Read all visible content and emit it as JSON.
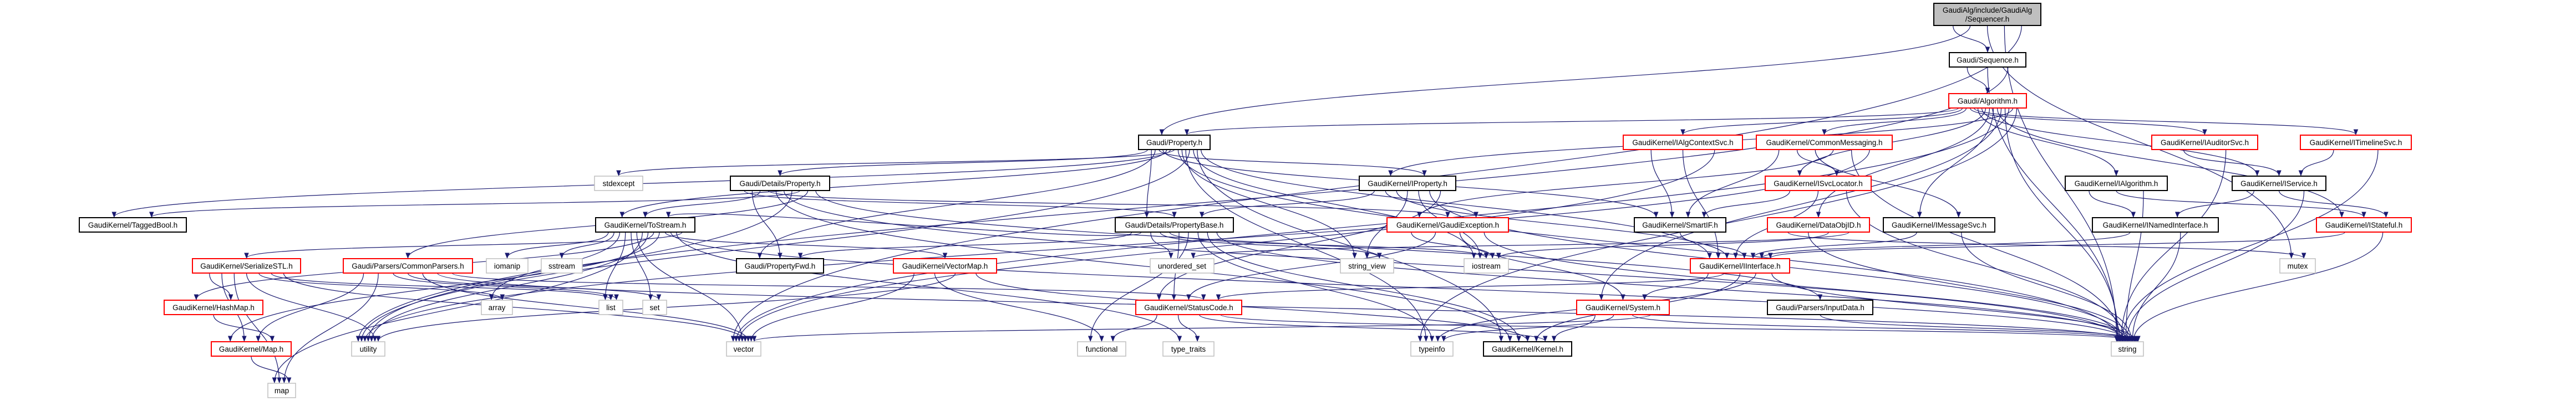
{
  "colors": {
    "edge": "#191970",
    "root_fill": "#bfbfbf",
    "documented_border": "#000000",
    "truncated_border": "#ff0000",
    "external_border": "#bfbfbf"
  },
  "nodes": [
    {
      "id": "root",
      "label": [
        "GaudiAlg/include/GaudiAlg",
        "/Sequencer.h"
      ],
      "kind": "root"
    },
    {
      "id": "sequence",
      "label": [
        "Gaudi/Sequence.h"
      ],
      "kind": "doc"
    },
    {
      "id": "algorithm",
      "label": [
        "Gaudi/Algorithm.h"
      ],
      "kind": "trunc"
    },
    {
      "id": "property",
      "label": [
        "Gaudi/Property.h"
      ],
      "kind": "doc"
    },
    {
      "id": "ialgctx",
      "label": [
        "GaudiKernel/IAlgContextSvc.h"
      ],
      "kind": "trunc"
    },
    {
      "id": "commonmsg",
      "label": [
        "GaudiKernel/CommonMessaging.h"
      ],
      "kind": "trunc"
    },
    {
      "id": "iauditor",
      "label": [
        "GaudiKernel/IAuditorSvc.h"
      ],
      "kind": "trunc"
    },
    {
      "id": "itimeline",
      "label": [
        "GaudiKernel/ITimelineSvc.h"
      ],
      "kind": "trunc"
    },
    {
      "id": "stdexcept",
      "label": [
        "stdexcept"
      ],
      "kind": "ext"
    },
    {
      "id": "detprop",
      "label": [
        "Gaudi/Details/Property.h"
      ],
      "kind": "doc"
    },
    {
      "id": "iproperty",
      "label": [
        "GaudiKernel/IProperty.h"
      ],
      "kind": "doc"
    },
    {
      "id": "isvcloc",
      "label": [
        "GaudiKernel/ISvcLocator.h"
      ],
      "kind": "trunc"
    },
    {
      "id": "ialgorithm",
      "label": [
        "GaudiKernel/IAlgorithm.h"
      ],
      "kind": "doc"
    },
    {
      "id": "iservice",
      "label": [
        "GaudiKernel/IService.h"
      ],
      "kind": "doc"
    },
    {
      "id": "taggedbool",
      "label": [
        "GaudiKernel/TaggedBool.h"
      ],
      "kind": "doc"
    },
    {
      "id": "tostream",
      "label": [
        "GaudiKernel/ToStream.h"
      ],
      "kind": "doc"
    },
    {
      "id": "propbase",
      "label": [
        "Gaudi/Details/PropertyBase.h"
      ],
      "kind": "doc"
    },
    {
      "id": "gaudiexc",
      "label": [
        "GaudiKernel/GaudiException.h"
      ],
      "kind": "trunc"
    },
    {
      "id": "smartif",
      "label": [
        "GaudiKernel/SmartIF.h"
      ],
      "kind": "doc"
    },
    {
      "id": "dataobjid",
      "label": [
        "GaudiKernel/DataObjID.h"
      ],
      "kind": "trunc"
    },
    {
      "id": "imsgsvc",
      "label": [
        "GaudiKernel/IMessageSvc.h"
      ],
      "kind": "doc"
    },
    {
      "id": "inamed",
      "label": [
        "GaudiKernel/INamedInterface.h"
      ],
      "kind": "doc"
    },
    {
      "id": "istateful",
      "label": [
        "GaudiKernel/IStateful.h"
      ],
      "kind": "trunc"
    },
    {
      "id": "serializestl",
      "label": [
        "GaudiKernel/SerializeSTL.h"
      ],
      "kind": "trunc"
    },
    {
      "id": "commonparsers",
      "label": [
        "Gaudi/Parsers/CommonParsers.h"
      ],
      "kind": "trunc"
    },
    {
      "id": "iomanip",
      "label": [
        "iomanip"
      ],
      "kind": "ext"
    },
    {
      "id": "sstream",
      "label": [
        "sstream"
      ],
      "kind": "ext"
    },
    {
      "id": "propfwd",
      "label": [
        "Gaudi/PropertyFwd.h"
      ],
      "kind": "doc"
    },
    {
      "id": "vectormap",
      "label": [
        "GaudiKernel/VectorMap.h"
      ],
      "kind": "trunc"
    },
    {
      "id": "unordered_set",
      "label": [
        "unordered_set"
      ],
      "kind": "ext"
    },
    {
      "id": "string_view",
      "label": [
        "string_view"
      ],
      "kind": "ext"
    },
    {
      "id": "iostream",
      "label": [
        "iostream"
      ],
      "kind": "ext"
    },
    {
      "id": "iinterface",
      "label": [
        "GaudiKernel/IInterface.h"
      ],
      "kind": "trunc"
    },
    {
      "id": "mutex",
      "label": [
        "mutex"
      ],
      "kind": "ext"
    },
    {
      "id": "hashmap",
      "label": [
        "GaudiKernel/HashMap.h"
      ],
      "kind": "trunc"
    },
    {
      "id": "array",
      "label": [
        "array"
      ],
      "kind": "ext"
    },
    {
      "id": "list",
      "label": [
        "list"
      ],
      "kind": "ext"
    },
    {
      "id": "set",
      "label": [
        "set"
      ],
      "kind": "ext"
    },
    {
      "id": "statuscode",
      "label": [
        "GaudiKernel/StatusCode.h"
      ],
      "kind": "trunc"
    },
    {
      "id": "system",
      "label": [
        "GaudiKernel/System.h"
      ],
      "kind": "trunc"
    },
    {
      "id": "inputdata",
      "label": [
        "Gaudi/Parsers/InputData.h"
      ],
      "kind": "doc"
    },
    {
      "id": "mapH",
      "label": [
        "GaudiKernel/Map.h"
      ],
      "kind": "trunc"
    },
    {
      "id": "utility",
      "label": [
        "utility"
      ],
      "kind": "ext"
    },
    {
      "id": "vector",
      "label": [
        "vector"
      ],
      "kind": "ext"
    },
    {
      "id": "functional",
      "label": [
        "functional"
      ],
      "kind": "ext"
    },
    {
      "id": "type_traits",
      "label": [
        "type_traits"
      ],
      "kind": "ext"
    },
    {
      "id": "typeinfo",
      "label": [
        "typeinfo"
      ],
      "kind": "ext"
    },
    {
      "id": "kernel",
      "label": [
        "GaudiKernel/Kernel.h"
      ],
      "kind": "doc"
    },
    {
      "id": "string",
      "label": [
        "string"
      ],
      "kind": "ext"
    },
    {
      "id": "map",
      "label": [
        "map"
      ],
      "kind": "ext"
    }
  ],
  "edges": [
    [
      "root",
      "sequence"
    ],
    [
      "root",
      "property"
    ],
    [
      "root",
      "mutex"
    ],
    [
      "root",
      "string"
    ],
    [
      "root",
      "vector"
    ],
    [
      "sequence",
      "algorithm"
    ],
    [
      "sequence",
      "string"
    ],
    [
      "sequence",
      "utility"
    ],
    [
      "algorithm",
      "property"
    ],
    [
      "algorithm",
      "ialgctx"
    ],
    [
      "algorithm",
      "commonmsg"
    ],
    [
      "algorithm",
      "iauditor"
    ],
    [
      "algorithm",
      "itimeline"
    ],
    [
      "algorithm",
      "ialgorithm"
    ],
    [
      "algorithm",
      "iservice"
    ],
    [
      "algorithm",
      "isvcloc"
    ],
    [
      "algorithm",
      "dataobjid"
    ],
    [
      "algorithm",
      "imsgsvc"
    ],
    [
      "algorithm",
      "istateful"
    ],
    [
      "algorithm",
      "system"
    ],
    [
      "algorithm",
      "string"
    ],
    [
      "algorithm",
      "vector"
    ],
    [
      "algorithm",
      "iproperty"
    ],
    [
      "algorithm",
      "typeinfo"
    ],
    [
      "property",
      "detprop"
    ],
    [
      "property",
      "propbase"
    ],
    [
      "property",
      "propfwd"
    ],
    [
      "property",
      "iproperty"
    ],
    [
      "property",
      "smartif"
    ],
    [
      "property",
      "tostream"
    ],
    [
      "property",
      "taggedbool"
    ],
    [
      "property",
      "stdexcept"
    ],
    [
      "property",
      "string"
    ],
    [
      "property",
      "string_view"
    ],
    [
      "property",
      "typeinfo"
    ],
    [
      "property",
      "utility"
    ],
    [
      "property",
      "iostream"
    ],
    [
      "property",
      "kernel"
    ],
    [
      "property",
      "iinterface"
    ],
    [
      "ialgctx",
      "smartif"
    ],
    [
      "ialgctx",
      "iinterface"
    ],
    [
      "ialgctx",
      "vector"
    ],
    [
      "commonmsg",
      "smartif"
    ],
    [
      "commonmsg",
      "isvcloc"
    ],
    [
      "commonmsg",
      "imsgsvc"
    ],
    [
      "commonmsg",
      "gaudiexc"
    ],
    [
      "commonmsg",
      "string"
    ],
    [
      "commonmsg",
      "utility"
    ],
    [
      "iauditor",
      "iservice"
    ],
    [
      "iauditor",
      "string"
    ],
    [
      "itimeline",
      "iservice"
    ],
    [
      "itimeline",
      "string"
    ],
    [
      "detprop",
      "propbase"
    ],
    [
      "detprop",
      "propfwd"
    ],
    [
      "detprop",
      "tostream"
    ],
    [
      "detprop",
      "gaudiexc"
    ],
    [
      "detprop",
      "kernel"
    ],
    [
      "detprop",
      "string"
    ],
    [
      "detprop",
      "utility"
    ],
    [
      "detprop",
      "taggedbool"
    ],
    [
      "detprop",
      "commonparsers"
    ],
    [
      "detprop",
      "inputdata"
    ],
    [
      "iproperty",
      "propbase"
    ],
    [
      "iproperty",
      "gaudiexc"
    ],
    [
      "iproperty",
      "iinterface"
    ],
    [
      "iproperty",
      "string_view"
    ],
    [
      "iproperty",
      "iostream"
    ],
    [
      "iproperty",
      "string"
    ],
    [
      "iproperty",
      "statuscode"
    ],
    [
      "isvcloc",
      "smartif"
    ],
    [
      "isvcloc",
      "iinterface"
    ],
    [
      "isvcloc",
      "string"
    ],
    [
      "ialgorithm",
      "inamed"
    ],
    [
      "ialgorithm",
      "istateful"
    ],
    [
      "ialgorithm",
      "string"
    ],
    [
      "iservice",
      "inamed"
    ],
    [
      "iservice",
      "istateful"
    ],
    [
      "iservice",
      "string"
    ],
    [
      "tostream",
      "iomanip"
    ],
    [
      "tostream",
      "sstream"
    ],
    [
      "tostream",
      "array"
    ],
    [
      "tostream",
      "list"
    ],
    [
      "tostream",
      "set"
    ],
    [
      "tostream",
      "vector"
    ],
    [
      "tostream",
      "map"
    ],
    [
      "tostream",
      "utility"
    ],
    [
      "tostream",
      "hashmap"
    ],
    [
      "tostream",
      "mapH"
    ],
    [
      "tostream",
      "vectormap"
    ],
    [
      "tostream",
      "string"
    ],
    [
      "tostream",
      "type_traits"
    ],
    [
      "tostream",
      "serializestl"
    ],
    [
      "propbase",
      "propfwd"
    ],
    [
      "propbase",
      "tostream"
    ],
    [
      "propbase",
      "unordered_set"
    ],
    [
      "propbase",
      "string_view"
    ],
    [
      "propbase",
      "iostream"
    ],
    [
      "propbase",
      "statuscode"
    ],
    [
      "propbase",
      "functional"
    ],
    [
      "propbase",
      "typeinfo"
    ],
    [
      "propbase",
      "kernel"
    ],
    [
      "propbase",
      "string"
    ],
    [
      "gaudiexc",
      "iostream"
    ],
    [
      "gaudiexc",
      "statuscode"
    ],
    [
      "gaudiexc",
      "system"
    ],
    [
      "gaudiexc",
      "string"
    ],
    [
      "smartif",
      "iinterface"
    ],
    [
      "dataobjid",
      "mutex"
    ],
    [
      "dataobjid",
      "string"
    ],
    [
      "dataobjid",
      "iostream"
    ],
    [
      "dataobjid",
      "unordered_set"
    ],
    [
      "imsgsvc",
      "iinterface"
    ],
    [
      "imsgsvc",
      "string"
    ],
    [
      "inamed",
      "iinterface"
    ],
    [
      "inamed",
      "string"
    ],
    [
      "istateful",
      "iinterface"
    ],
    [
      "istateful",
      "string"
    ],
    [
      "serializestl",
      "hashmap"
    ],
    [
      "serializestl",
      "mapH"
    ],
    [
      "serializestl",
      "map"
    ],
    [
      "serializestl",
      "utility"
    ],
    [
      "serializestl",
      "array"
    ],
    [
      "serializestl",
      "list"
    ],
    [
      "serializestl",
      "vector"
    ],
    [
      "commonparsers",
      "mapH"
    ],
    [
      "commonparsers",
      "map"
    ],
    [
      "commonparsers",
      "list"
    ],
    [
      "commonparsers",
      "set"
    ],
    [
      "commonparsers",
      "vector"
    ],
    [
      "commonparsers",
      "string"
    ],
    [
      "commonparsers",
      "statuscode"
    ],
    [
      "vectormap",
      "vector"
    ],
    [
      "vectormap",
      "functional"
    ],
    [
      "vectormap",
      "utility"
    ],
    [
      "vectormap",
      "kernel"
    ],
    [
      "iinterface",
      "system"
    ],
    [
      "iinterface",
      "statuscode"
    ],
    [
      "iinterface",
      "kernel"
    ],
    [
      "iinterface",
      "typeinfo"
    ],
    [
      "iinterface",
      "string"
    ],
    [
      "statuscode",
      "functional"
    ],
    [
      "statuscode",
      "type_traits"
    ],
    [
      "statuscode",
      "kernel"
    ],
    [
      "statuscode",
      "string"
    ],
    [
      "system",
      "kernel"
    ],
    [
      "system",
      "typeinfo"
    ],
    [
      "system",
      "string"
    ],
    [
      "system",
      "vector"
    ],
    [
      "inputdata",
      "string"
    ],
    [
      "hashmap",
      "mapH"
    ],
    [
      "mapH",
      "map"
    ]
  ]
}
